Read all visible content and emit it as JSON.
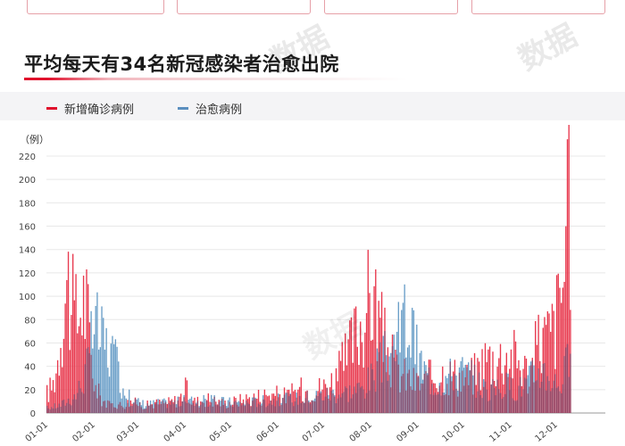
{
  "title": "平均每天有34名新冠感染者治愈出院",
  "watermark_text": "数据",
  "colors": {
    "accent": "#e0102c",
    "new_cases": "#e8394e",
    "cured": "#6b9fc8",
    "overlap": "#8a4a6a",
    "grid": "#e8e8e8"
  },
  "chart_data": {
    "type": "bar",
    "unit_label": "（例）",
    "ylim": [
      0,
      220
    ],
    "y_ticks": [
      0,
      20,
      40,
      60,
      80,
      100,
      120,
      140,
      160,
      180,
      200,
      220
    ],
    "x_tick_labels": [
      "01-01",
      "02-01",
      "03-01",
      "04-01",
      "05-01",
      "06-01",
      "07-01",
      "08-01",
      "09-01",
      "10-01",
      "11-01",
      "12-01"
    ],
    "legend_placement": "top-left",
    "grid": true,
    "series": [
      {
        "name": "新增确诊病例",
        "color": "#e8394e",
        "anchors": [
          [
            1,
            20
          ],
          [
            5,
            30
          ],
          [
            8,
            55
          ],
          [
            12,
            120
          ],
          [
            15,
            135
          ],
          [
            18,
            105
          ],
          [
            21,
            95
          ],
          [
            24,
            120
          ],
          [
            27,
            110
          ],
          [
            30,
            60
          ],
          [
            33,
            25
          ],
          [
            37,
            15
          ],
          [
            42,
            8
          ],
          [
            46,
            10
          ],
          [
            50,
            8
          ],
          [
            56,
            12
          ],
          [
            60,
            10
          ],
          [
            66,
            8
          ],
          [
            72,
            10
          ],
          [
            78,
            10
          ],
          [
            84,
            12
          ],
          [
            88,
            15
          ],
          [
            92,
            25
          ],
          [
            96,
            12
          ],
          [
            100,
            12
          ],
          [
            106,
            15
          ],
          [
            112,
            12
          ],
          [
            118,
            10
          ],
          [
            124,
            12
          ],
          [
            130,
            14
          ],
          [
            136,
            16
          ],
          [
            142,
            18
          ],
          [
            148,
            20
          ],
          [
            154,
            18
          ],
          [
            160,
            18
          ],
          [
            164,
            22
          ],
          [
            168,
            24
          ],
          [
            172,
            24
          ],
          [
            178,
            25
          ],
          [
            184,
            28
          ],
          [
            190,
            35
          ],
          [
            196,
            50
          ],
          [
            200,
            65
          ],
          [
            205,
            85
          ],
          [
            209,
            100
          ],
          [
            213,
            115
          ],
          [
            216,
            120
          ],
          [
            219,
            95
          ],
          [
            222,
            75
          ],
          [
            226,
            60
          ],
          [
            230,
            45
          ],
          [
            236,
            38
          ],
          [
            242,
            32
          ],
          [
            248,
            30
          ],
          [
            254,
            38
          ],
          [
            260,
            42
          ],
          [
            266,
            40
          ],
          [
            272,
            38
          ],
          [
            278,
            35
          ],
          [
            284,
            45
          ],
          [
            290,
            58
          ],
          [
            296,
            55
          ],
          [
            302,
            60
          ],
          [
            308,
            58
          ],
          [
            314,
            48
          ],
          [
            318,
            40
          ],
          [
            321,
            55
          ],
          [
            324,
            75
          ],
          [
            327,
            80
          ],
          [
            330,
            78
          ],
          [
            333,
            85
          ],
          [
            336,
            100
          ],
          [
            339,
            130
          ],
          [
            342,
            160
          ],
          [
            344,
            205
          ],
          [
            345,
            210
          ]
        ]
      },
      {
        "name": "治愈病例",
        "color": "#6b9fc8",
        "anchors": [
          [
            1,
            5
          ],
          [
            10,
            8
          ],
          [
            20,
            18
          ],
          [
            25,
            35
          ],
          [
            29,
            55
          ],
          [
            32,
            95
          ],
          [
            36,
            75
          ],
          [
            40,
            68
          ],
          [
            44,
            58
          ],
          [
            48,
            40
          ],
          [
            52,
            22
          ],
          [
            56,
            14
          ],
          [
            62,
            10
          ],
          [
            68,
            9
          ],
          [
            75,
            10
          ],
          [
            82,
            10
          ],
          [
            90,
            12
          ],
          [
            100,
            12
          ],
          [
            110,
            12
          ],
          [
            120,
            11
          ],
          [
            130,
            10
          ],
          [
            140,
            12
          ],
          [
            150,
            13
          ],
          [
            160,
            14
          ],
          [
            170,
            15
          ],
          [
            180,
            18
          ],
          [
            190,
            20
          ],
          [
            200,
            22
          ],
          [
            208,
            25
          ],
          [
            214,
            35
          ],
          [
            220,
            48
          ],
          [
            226,
            62
          ],
          [
            232,
            75
          ],
          [
            236,
            95
          ],
          [
            239,
            88
          ],
          [
            242,
            70
          ],
          [
            246,
            52
          ],
          [
            250,
            40
          ],
          [
            256,
            30
          ],
          [
            262,
            35
          ],
          [
            268,
            40
          ],
          [
            274,
            42
          ],
          [
            280,
            36
          ],
          [
            286,
            28
          ],
          [
            292,
            22
          ],
          [
            298,
            25
          ],
          [
            304,
            28
          ],
          [
            310,
            24
          ],
          [
            316,
            30
          ],
          [
            320,
            38
          ],
          [
            324,
            44
          ],
          [
            328,
            42
          ],
          [
            332,
            36
          ],
          [
            336,
            30
          ],
          [
            340,
            34
          ],
          [
            344,
            60
          ],
          [
            345,
            40
          ]
        ]
      }
    ]
  }
}
